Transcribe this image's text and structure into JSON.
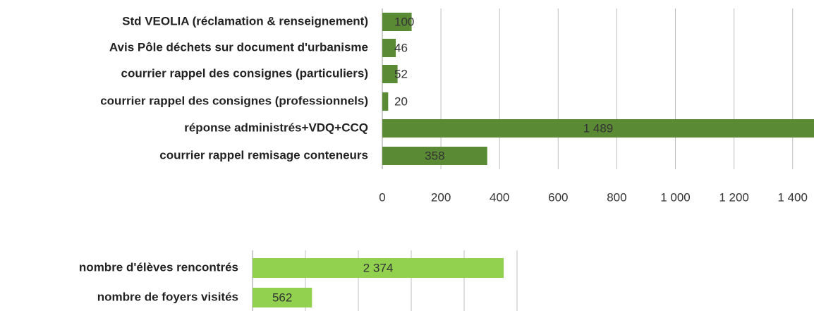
{
  "chart_data": [
    {
      "type": "bar",
      "orientation": "horizontal",
      "categories": [
        "Std VEOLIA (réclamation & renseignement)",
        "Avis Pôle déchets sur document d'urbanisme",
        "courrier rappel des consignes (particuliers)",
        "courrier rappel des consignes (professionnels)",
        "réponse administrés+VDQ+CCQ",
        "courrier rappel remisage conteneurs"
      ],
      "values": [
        100,
        46,
        52,
        20,
        1489,
        358
      ],
      "value_labels": [
        "100",
        "46",
        "52",
        "20",
        "1 489",
        "358"
      ],
      "color": "#5b8a35",
      "xlim": [
        0,
        1480
      ],
      "xticks": [
        0,
        200,
        400,
        600,
        800,
        {
          "value": 1000,
          "label": "1 000"
        },
        {
          "value": 1200,
          "label": "1 200"
        },
        {
          "value": 1400,
          "label": "1 400"
        }
      ],
      "grid": true
    },
    {
      "type": "bar",
      "orientation": "horizontal",
      "categories": [
        "nombre d'élèves rencontrés",
        "nombre de foyers visités"
      ],
      "values": [
        2374,
        562
      ],
      "value_labels": [
        "2 374",
        "562"
      ],
      "color": "#92d050",
      "xlim": [
        0,
        2500
      ],
      "xticks": [
        0,
        500,
        1000,
        1500,
        2000,
        2500
      ],
      "grid": true
    }
  ]
}
